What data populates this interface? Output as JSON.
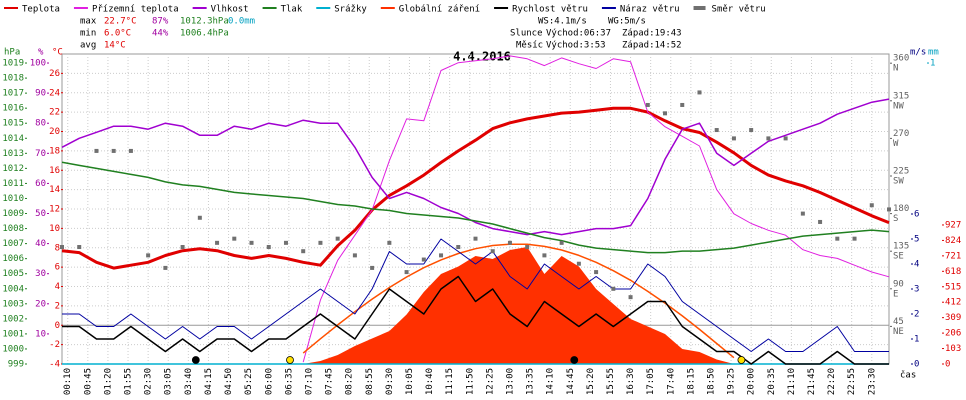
{
  "chart_data": {
    "type": "line",
    "title": "4.4.2016",
    "x_label": "čas",
    "stats": [
      [
        "max",
        "22.7°C",
        "87%",
        "1012.3hPa",
        "0.0mm"
      ],
      [
        "min",
        "6.0°C",
        "44%",
        "1006.4hPa"
      ],
      [
        "avg",
        "14°C"
      ]
    ],
    "stat_colors": [
      "#000000",
      "#e00000",
      "#a000a0",
      "#208020",
      "#00a0c0"
    ],
    "info": [
      [
        "WS:4.1m/s",
        "WG:5m/s"
      ],
      [
        "Slunce",
        "Východ:06:37",
        "Západ:19:43"
      ],
      [
        "Měsíc",
        "Východ:3:53",
        "Západ:14:52"
      ]
    ],
    "grid": true,
    "xlim": [
      0,
      1440
    ],
    "xticks": [
      {
        "value": 10,
        "label": "00:10"
      },
      {
        "value": 45,
        "label": "00:45"
      },
      {
        "value": 80,
        "label": "01:20"
      },
      {
        "value": 115,
        "label": "01:55"
      },
      {
        "value": 150,
        "label": "02:30"
      },
      {
        "value": 185,
        "label": "03:05"
      },
      {
        "value": 220,
        "label": "03:40"
      },
      {
        "value": 255,
        "label": "04:15"
      },
      {
        "value": 290,
        "label": "04:50"
      },
      {
        "value": 325,
        "label": "05:25"
      },
      {
        "value": 360,
        "label": "06:00"
      },
      {
        "value": 395,
        "label": "06:35"
      },
      {
        "value": 430,
        "label": "07:10"
      },
      {
        "value": 465,
        "label": "07:45"
      },
      {
        "value": 500,
        "label": "08:20"
      },
      {
        "value": 535,
        "label": "08:55"
      },
      {
        "value": 570,
        "label": "09:30"
      },
      {
        "value": 605,
        "label": "10:05"
      },
      {
        "value": 640,
        "label": "10:40"
      },
      {
        "value": 675,
        "label": "11:15"
      },
      {
        "value": 710,
        "label": "11:50"
      },
      {
        "value": 745,
        "label": "12:25"
      },
      {
        "value": 780,
        "label": "13:00"
      },
      {
        "value": 815,
        "label": "13:35"
      },
      {
        "value": 850,
        "label": "14:10"
      },
      {
        "value": 885,
        "label": "14:45"
      },
      {
        "value": 920,
        "label": "15:20"
      },
      {
        "value": 955,
        "label": "15:55"
      },
      {
        "value": 990,
        "label": "16:30"
      },
      {
        "value": 1025,
        "label": "17:05"
      },
      {
        "value": 1060,
        "label": "17:40"
      },
      {
        "value": 1095,
        "label": "18:15"
      },
      {
        "value": 1130,
        "label": "18:50"
      },
      {
        "value": 1165,
        "label": "19:25"
      },
      {
        "value": 1200,
        "label": "20:00"
      },
      {
        "value": 1235,
        "label": "20:35"
      },
      {
        "value": 1270,
        "label": "21:10"
      },
      {
        "value": 1305,
        "label": "21:45"
      },
      {
        "value": 1340,
        "label": "22:20"
      },
      {
        "value": 1375,
        "label": "22:55"
      },
      {
        "value": 1410,
        "label": "23:30"
      }
    ],
    "axes": {
      "hpa": {
        "unit": "hPa",
        "color": "#208020",
        "lim": [
          999,
          1019.6
        ],
        "ticks": [
          999,
          1000,
          1001,
          1002,
          1003,
          1004,
          1005,
          1006,
          1007,
          1008,
          1009,
          1010,
          1011,
          1012,
          1013,
          1014,
          1015,
          1016,
          1017,
          1018,
          1019
        ]
      },
      "pct": {
        "unit": "%",
        "color": "#a000a0",
        "lim": [
          0,
          103
        ],
        "ticks": [
          10,
          20,
          30,
          40,
          50,
          60,
          70,
          80,
          90,
          100
        ]
      },
      "temp": {
        "unit": "°C",
        "color": "#e00000",
        "lim": [
          -4,
          28
        ],
        "ticks": [
          -4,
          -2,
          0,
          2,
          4,
          6,
          8,
          10,
          12,
          14,
          16,
          18,
          20,
          22,
          24,
          26
        ]
      },
      "dir": {
        "color": "#606060",
        "lim": [
          0,
          371
        ],
        "ticks": [
          360,
          315,
          270,
          225,
          180,
          135,
          90,
          45
        ],
        "names": [
          "N",
          "NW",
          "W",
          "SW",
          "S",
          "SE",
          "E",
          "NE"
        ]
      },
      "ms": {
        "unit": "m/s",
        "color": "#000080",
        "lim": [
          0,
          12.4
        ],
        "ticks": [
          0,
          1,
          2,
          3,
          4,
          5,
          6
        ]
      },
      "mm": {
        "unit": "mm",
        "color": "#00a0c0",
        "lim": [
          0,
          1.03
        ],
        "ticks": [
          1
        ]
      },
      "wm2": {
        "color": "#e00000",
        "lim": [
          0,
          2067
        ],
        "ticks": [
          0,
          103,
          206,
          309,
          412,
          515,
          618,
          721,
          824,
          927
        ]
      }
    },
    "x": [
      0,
      30,
      60,
      90,
      120,
      150,
      180,
      210,
      240,
      270,
      300,
      330,
      360,
      390,
      420,
      450,
      480,
      510,
      540,
      570,
      600,
      630,
      660,
      690,
      720,
      750,
      780,
      810,
      840,
      870,
      900,
      930,
      960,
      990,
      1020,
      1050,
      1080,
      1110,
      1140,
      1170,
      1200,
      1230,
      1260,
      1290,
      1320,
      1350,
      1380,
      1410,
      1440
    ],
    "series": [
      {
        "name": "Teplota",
        "color": "#e00000",
        "kind": "line",
        "width": 3,
        "axis": "temp",
        "values": [
          7.7,
          7.5,
          6.5,
          5.9,
          6.2,
          6.5,
          7.2,
          7.7,
          7.9,
          7.7,
          7.2,
          6.9,
          7.2,
          6.9,
          6.5,
          6.2,
          8.2,
          9.8,
          11.9,
          13.4,
          14.4,
          15.5,
          16.8,
          18,
          19.1,
          20.3,
          20.9,
          21.3,
          21.6,
          21.9,
          22,
          22.2,
          22.4,
          22.4,
          22,
          21.1,
          20.3,
          19.9,
          18.9,
          17.8,
          16.5,
          15.5,
          14.9,
          14.4,
          13.7,
          12.9,
          12.1,
          11.3,
          10.6
        ]
      },
      {
        "name": "Přízemní teplota",
        "color": "#e020e0",
        "kind": "line",
        "width": 1,
        "axis": "temp",
        "values": [
          null,
          null,
          null,
          null,
          null,
          null,
          null,
          null,
          null,
          null,
          null,
          null,
          null,
          null,
          -3.8,
          2.6,
          6.7,
          9.3,
          11.9,
          17,
          21.3,
          21.1,
          26.3,
          27.1,
          27.3,
          27.5,
          27.8,
          27.5,
          26.8,
          27.6,
          27,
          26.5,
          27.5,
          27.2,
          22,
          20.5,
          19.5,
          18.5,
          14,
          11.5,
          10.5,
          9.8,
          9.3,
          7.8,
          7.2,
          6.9,
          6.2,
          5.5,
          5
        ]
      },
      {
        "name": "Vlhkost",
        "color": "#a000d0",
        "kind": "line",
        "width": 1.5,
        "axis": "pct",
        "values": [
          72,
          75,
          77,
          79,
          79,
          78,
          80,
          79,
          76,
          76,
          79,
          78,
          80,
          79,
          81,
          80,
          80,
          72,
          62,
          55,
          57,
          55,
          52,
          50,
          47,
          45,
          44,
          43,
          44,
          43,
          44,
          45,
          45,
          46,
          55,
          68,
          78,
          80,
          70,
          66,
          70,
          74,
          76,
          78,
          80,
          83,
          85,
          87,
          88
        ]
      },
      {
        "name": "Tlak",
        "color": "#208020",
        "kind": "line",
        "width": 1.5,
        "axis": "hpa",
        "values": [
          1012.4,
          1012.2,
          1012,
          1011.8,
          1011.6,
          1011.4,
          1011.1,
          1010.9,
          1010.8,
          1010.6,
          1010.4,
          1010.3,
          1010.2,
          1010.1,
          1010,
          1009.8,
          1009.6,
          1009.5,
          1009.3,
          1009.2,
          1009,
          1008.9,
          1008.8,
          1008.7,
          1008.5,
          1008.3,
          1008,
          1007.7,
          1007.4,
          1007.2,
          1006.9,
          1006.7,
          1006.6,
          1006.5,
          1006.4,
          1006.4,
          1006.5,
          1006.5,
          1006.6,
          1006.7,
          1006.9,
          1007.1,
          1007.3,
          1007.5,
          1007.6,
          1007.7,
          1007.8,
          1007.9,
          1007.8
        ]
      },
      {
        "name": "Srážky",
        "color": "#00b0d0",
        "kind": "line",
        "width": 1.5,
        "axis": "mm",
        "values": [
          0,
          0,
          0,
          0,
          0,
          0,
          0,
          0,
          0,
          0,
          0,
          0,
          0,
          0,
          0,
          0,
          0,
          0,
          0,
          0,
          0,
          0,
          0,
          0,
          0,
          0,
          0,
          0,
          0,
          0,
          0,
          0,
          0,
          0,
          0,
          0,
          0,
          0,
          0,
          0,
          0,
          0,
          0,
          0,
          0,
          0,
          0,
          0,
          0
        ]
      },
      {
        "name": "Globální záření",
        "color": "#ff3000",
        "kind": "area",
        "width": 0,
        "axis": "wm2",
        "values": [
          0,
          0,
          0,
          0,
          0,
          0,
          0,
          0,
          0,
          0,
          0,
          0,
          0,
          0,
          0,
          20,
          60,
          120,
          170,
          220,
          330,
          480,
          600,
          650,
          720,
          700,
          760,
          780,
          600,
          720,
          650,
          500,
          400,
          300,
          250,
          200,
          100,
          80,
          30,
          0,
          0,
          0,
          0,
          0,
          0,
          0,
          0,
          0,
          0
        ]
      },
      {
        "color": "#ff5000",
        "kind": "line",
        "width": 1.5,
        "axis": "wm2",
        "values": [
          null,
          null,
          null,
          null,
          null,
          null,
          null,
          null,
          null,
          null,
          null,
          null,
          null,
          null,
          73,
          168,
          261,
          349,
          433,
          510,
          580,
          642,
          694,
          737,
          769,
          790,
          799,
          798,
          784,
          760,
          724,
          678,
          622,
          558,
          484,
          406,
          321,
          231,
          137,
          42,
          null,
          null,
          null,
          null,
          null,
          null,
          null,
          null,
          null
        ]
      },
      {
        "name": "Rychlost větru",
        "color": "#000000",
        "kind": "line",
        "width": 1.5,
        "axis": "ms",
        "values": [
          1.5,
          1.5,
          1,
          1,
          1.5,
          1,
          0.5,
          1,
          0.5,
          1,
          1,
          0.5,
          1,
          1,
          1.5,
          2,
          1.5,
          1,
          2,
          3,
          2.5,
          2,
          3,
          3.5,
          2.5,
          3,
          2,
          1.5,
          2.5,
          2,
          1.5,
          2,
          1.5,
          2,
          2.5,
          2.5,
          1.5,
          1,
          0.5,
          0.5,
          0,
          0.5,
          0,
          0,
          0,
          0.5,
          0,
          0,
          0
        ]
      },
      {
        "name": "Náraz větru",
        "color": "#0000a0",
        "kind": "line",
        "width": 1,
        "axis": "ms",
        "values": [
          2,
          2,
          1.5,
          1.5,
          2,
          1.5,
          1,
          1.5,
          1,
          1.5,
          1.5,
          1,
          1.5,
          2,
          2.5,
          3,
          2.5,
          2,
          3,
          4.5,
          4,
          4,
          5,
          4.5,
          4,
          4.5,
          3.5,
          3,
          4,
          3.5,
          3,
          3.5,
          3,
          3,
          4,
          3.5,
          2.5,
          2,
          1.5,
          1,
          0.5,
          1,
          0.5,
          0.5,
          1,
          1.5,
          0.5,
          0.5,
          0.5
        ]
      },
      {
        "name": "Směr větru",
        "color": "#707070",
        "kind": "scatter",
        "width": 0,
        "axis": "dir",
        "values": [
          140,
          140,
          255,
          255,
          255,
          130,
          115,
          140,
          175,
          145,
          150,
          145,
          140,
          145,
          135,
          145,
          150,
          130,
          115,
          145,
          110,
          125,
          130,
          140,
          150,
          135,
          145,
          140,
          130,
          145,
          120,
          110,
          90,
          80,
          310,
          300,
          310,
          325,
          280,
          270,
          280,
          270,
          270,
          180,
          170,
          150,
          150,
          190,
          185
        ]
      }
    ],
    "moon_events": [
      233,
      892
    ],
    "sun_events": [
      397,
      1183
    ],
    "moon_color": "#000000",
    "sun_color": "#ffe000"
  }
}
